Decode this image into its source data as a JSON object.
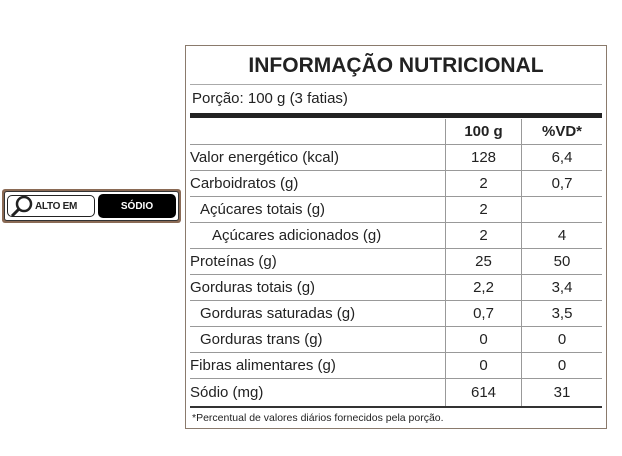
{
  "badge": {
    "prefix": "ALTO EM",
    "nutrient": "SÓDIO",
    "icon": "magnifier-icon"
  },
  "label": {
    "title": "INFORMAÇÃO NUTRICIONAL",
    "portion": "Porção: 100 g (3 fatias)",
    "headers": [
      "",
      "100 g",
      "%VD*"
    ],
    "rows": [
      {
        "name": "Valor energético (kcal)",
        "value": "128",
        "vd": "6,4",
        "indent": 0
      },
      {
        "name": "Carboidratos (g)",
        "value": "2",
        "vd": "0,7",
        "indent": 0
      },
      {
        "name": "Açúcares totais (g)",
        "value": "2",
        "vd": "",
        "indent": 1
      },
      {
        "name": "Açúcares adicionados (g)",
        "value": "2",
        "vd": "4",
        "indent": 2
      },
      {
        "name": "Proteínas (g)",
        "value": "25",
        "vd": "50",
        "indent": 0
      },
      {
        "name": "Gorduras totais (g)",
        "value": "2,2",
        "vd": "3,4",
        "indent": 0
      },
      {
        "name": "Gorduras saturadas (g)",
        "value": "0,7",
        "vd": "3,5",
        "indent": 1
      },
      {
        "name": "Gorduras trans (g)",
        "value": "0",
        "vd": "0",
        "indent": 1
      },
      {
        "name": "Fibras alimentares (g)",
        "value": "0",
        "vd": "0",
        "indent": 0
      },
      {
        "name": "Sódio (mg)",
        "value": "614",
        "vd": "31",
        "indent": 0
      }
    ],
    "footnote": "*Percentual de valores diários fornecidos pela porção."
  }
}
